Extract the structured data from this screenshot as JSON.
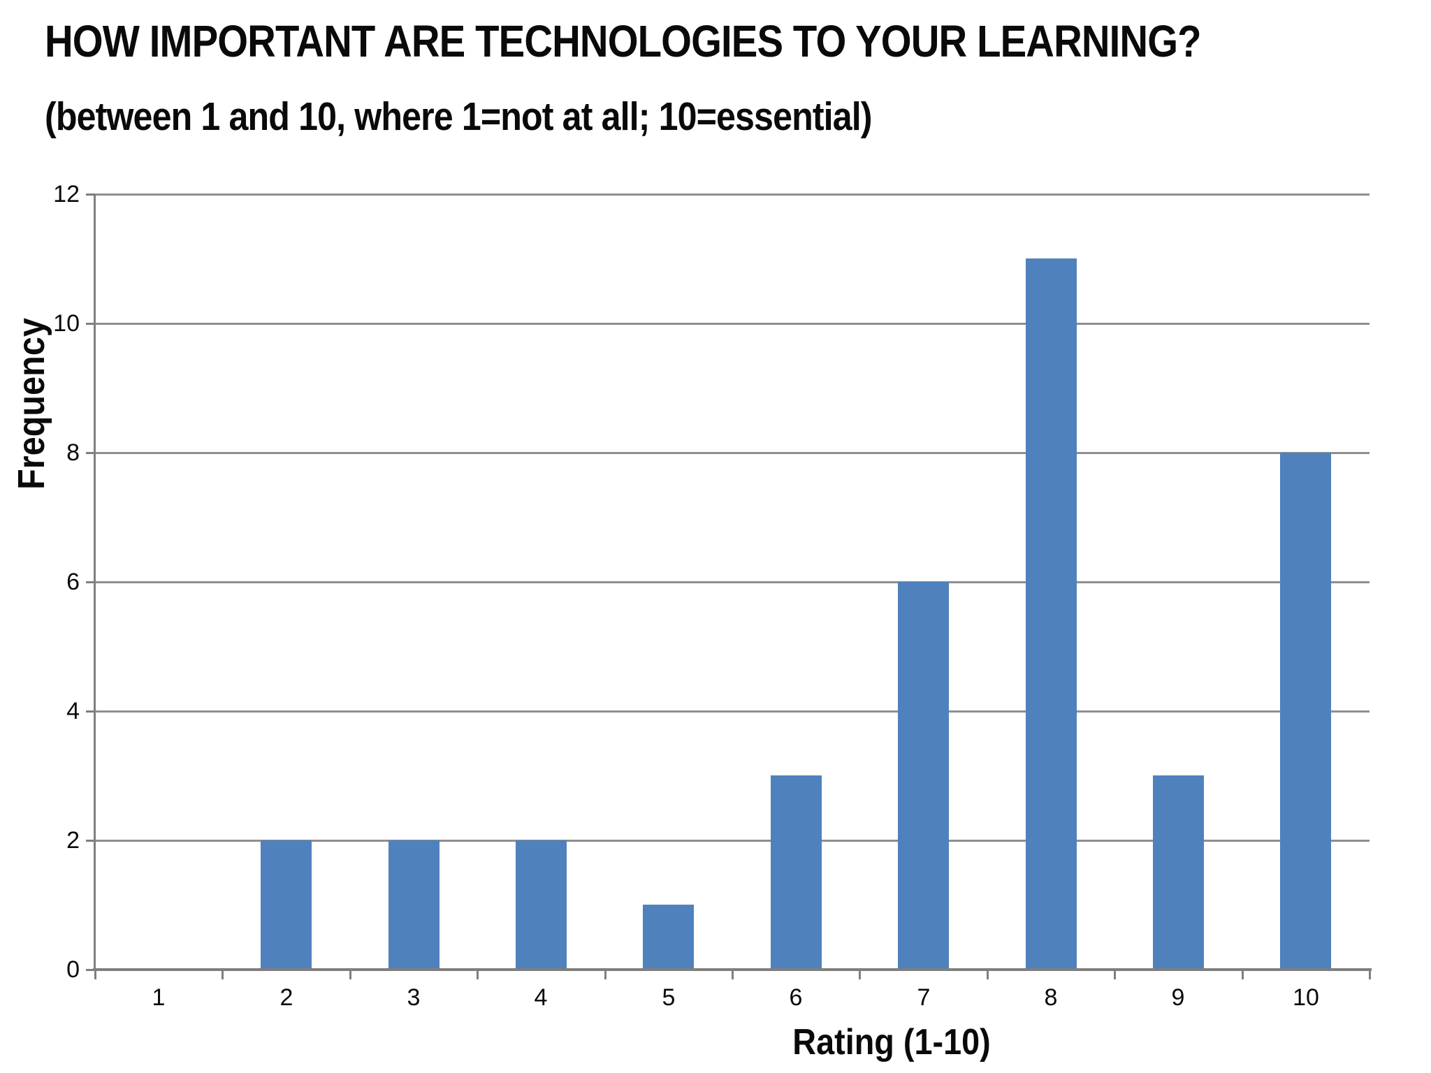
{
  "chart_data": {
    "type": "bar",
    "title": "HOW IMPORTANT ARE TECHNOLOGIES TO YOUR LEARNING?",
    "subtitle": "(between 1 and 10, where 1=not at all; 10=essential)",
    "xlabel": "Rating (1-10)",
    "ylabel": "Frequency",
    "categories": [
      "1",
      "2",
      "3",
      "4",
      "5",
      "6",
      "7",
      "8",
      "9",
      "10"
    ],
    "values": [
      0,
      2,
      2,
      2,
      1,
      3,
      6,
      11,
      3,
      8
    ],
    "ylim": [
      0,
      12
    ],
    "ytick_step": 2,
    "ytick_labels": [
      "0",
      "2",
      "4",
      "6",
      "8",
      "10",
      "12"
    ],
    "grid": "horizontal-on",
    "legend": "none",
    "bar_color": "#4F81BD",
    "gridline_color": "#8f8f8f",
    "axis_color": "#7f7f7f",
    "text_color": "#0a0a0a",
    "background_color": "#ffffff"
  }
}
